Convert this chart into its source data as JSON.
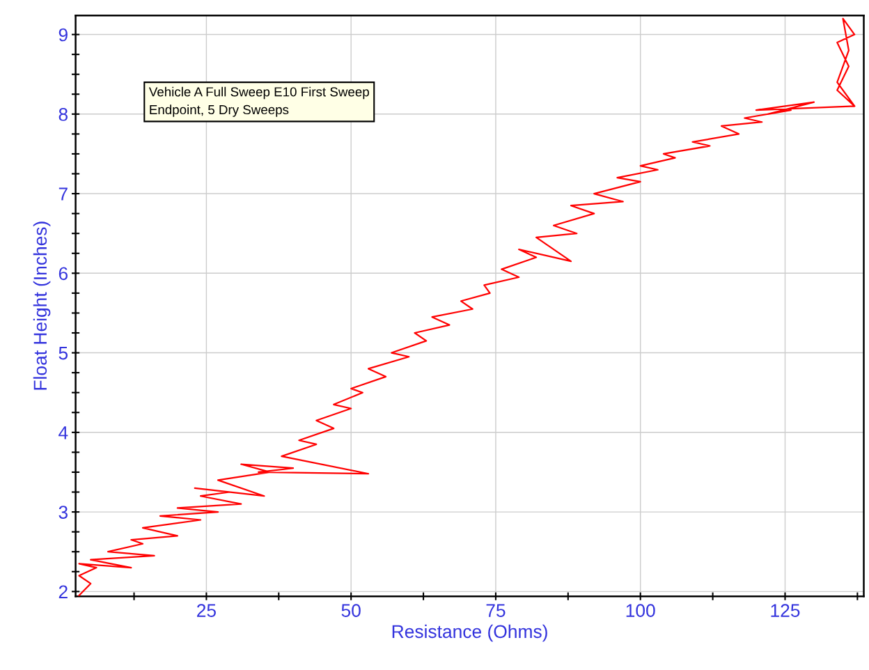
{
  "chart_data": {
    "type": "line",
    "xlabel": "Resistance (Ohms)",
    "ylabel": "Float Height (Inches)",
    "annotations": [
      "Vehicle A Full Sweep E10 First Sweep\nEndpoint, 5 Dry Sweeps"
    ],
    "series": [
      {
        "color": "#ff0000",
        "x": [
          3,
          5,
          3,
          6,
          3,
          12,
          5,
          16,
          8,
          14,
          12,
          20,
          14,
          24,
          17,
          27,
          20,
          31,
          24,
          29,
          23,
          35,
          27,
          36,
          31,
          40,
          34,
          53,
          38,
          44,
          41,
          47,
          44,
          50,
          47,
          52,
          50,
          56,
          53,
          60,
          57,
          63,
          61,
          67,
          64,
          71,
          69,
          74,
          73,
          79,
          76,
          82,
          79,
          88,
          82,
          89,
          85,
          92,
          88,
          97,
          92,
          100,
          96,
          103,
          100,
          106,
          104,
          112,
          109,
          117,
          114,
          121,
          118,
          126,
          122,
          130,
          120,
          137,
          134,
          136,
          134,
          137,
          135,
          136,
          134,
          137
        ],
        "values": [
          1.95,
          2.1,
          2.2,
          2.3,
          2.35,
          2.3,
          2.4,
          2.45,
          2.5,
          2.6,
          2.65,
          2.7,
          2.8,
          2.9,
          2.95,
          3.0,
          3.05,
          3.1,
          3.2,
          3.25,
          3.3,
          3.2,
          3.4,
          3.5,
          3.6,
          3.55,
          3.5,
          3.48,
          3.7,
          3.85,
          3.9,
          4.05,
          4.15,
          4.3,
          4.35,
          4.5,
          4.55,
          4.7,
          4.8,
          4.95,
          5.0,
          5.15,
          5.25,
          5.35,
          5.45,
          5.55,
          5.65,
          5.75,
          5.85,
          5.95,
          6.05,
          6.2,
          6.3,
          6.15,
          6.45,
          6.5,
          6.6,
          6.75,
          6.85,
          6.9,
          7.0,
          7.15,
          7.2,
          7.3,
          7.35,
          7.45,
          7.5,
          7.6,
          7.65,
          7.75,
          7.85,
          7.9,
          7.95,
          8.05,
          8.0,
          8.15,
          8.05,
          8.1,
          8.3,
          8.6,
          8.9,
          9.0,
          9.2,
          8.8,
          8.4,
          8.1
        ]
      }
    ],
    "xlim": [
      2.4,
      138.6
    ],
    "ylim": [
      1.94,
      9.24
    ],
    "xticks": [
      {
        "value": 12.5,
        "label": null
      },
      25,
      {
        "value": 37.5,
        "label": null
      },
      50,
      {
        "value": 62.5,
        "label": null
      },
      75,
      {
        "value": 87.5,
        "label": null
      },
      100,
      {
        "value": 112.5,
        "label": null
      },
      125,
      {
        "value": 137.5,
        "label": null
      }
    ],
    "yticks": [
      2,
      {
        "value": 2.25,
        "label": null
      },
      {
        "value": 2.5,
        "label": null
      },
      {
        "value": 2.75,
        "label": null
      },
      3,
      {
        "value": 3.25,
        "label": null
      },
      {
        "value": 3.5,
        "label": null
      },
      {
        "value": 3.75,
        "label": null
      },
      4,
      {
        "value": 4.25,
        "label": null
      },
      {
        "value": 4.5,
        "label": null
      },
      {
        "value": 4.75,
        "label": null
      },
      5,
      {
        "value": 5.25,
        "label": null
      },
      {
        "value": 5.5,
        "label": null
      },
      {
        "value": 5.75,
        "label": null
      },
      6,
      {
        "value": 6.25,
        "label": null
      },
      {
        "value": 6.5,
        "label": null
      },
      {
        "value": 6.75,
        "label": null
      },
      7,
      {
        "value": 7.25,
        "label": null
      },
      {
        "value": 7.5,
        "label": null
      },
      {
        "value": 7.75,
        "label": null
      },
      8,
      {
        "value": 8.25,
        "label": null
      },
      {
        "value": 8.5,
        "label": null
      },
      {
        "value": 8.75,
        "label": null
      },
      9
    ],
    "grid": true,
    "marker": "none",
    "line_style": "solid"
  }
}
